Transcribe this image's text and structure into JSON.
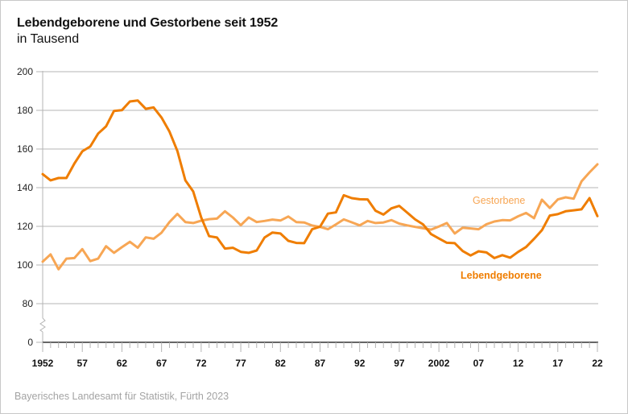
{
  "header": {
    "title": "Lebendgeborene und Gestorbene seit 1952",
    "subtitle": "in Tausend"
  },
  "footer": {
    "source": "Bayerisches Landesamt für Statistik, Fürth 2023"
  },
  "chart_data": {
    "type": "line",
    "title": "Lebendgeborene und Gestorbene seit 1952",
    "subtitle": "in Tausend",
    "xlabel": "",
    "ylabel": "",
    "ylim": [
      0,
      200
    ],
    "axis_break": [
      0,
      80
    ],
    "yticks": [
      0,
      80,
      100,
      120,
      140,
      160,
      180,
      200
    ],
    "ytick_labels": [
      "0",
      "80",
      "100",
      "120",
      "140",
      "160",
      "180",
      "200"
    ],
    "xlim": [
      1952,
      2022
    ],
    "xticks": [
      1952,
      1957,
      1962,
      1967,
      1972,
      1977,
      1982,
      1987,
      1992,
      1997,
      2002,
      2007,
      2012,
      2017,
      2022
    ],
    "xtick_labels": [
      "1952",
      "57",
      "62",
      "67",
      "72",
      "77",
      "82",
      "87",
      "92",
      "97",
      "2002",
      "07",
      "12",
      "17",
      "22"
    ],
    "grid": true,
    "x": [
      1952,
      1953,
      1954,
      1955,
      1956,
      1957,
      1958,
      1959,
      1960,
      1961,
      1962,
      1963,
      1964,
      1965,
      1966,
      1967,
      1968,
      1969,
      1970,
      1971,
      1972,
      1973,
      1974,
      1975,
      1976,
      1977,
      1978,
      1979,
      1980,
      1981,
      1982,
      1983,
      1984,
      1985,
      1986,
      1987,
      1988,
      1989,
      1990,
      1991,
      1992,
      1993,
      1994,
      1995,
      1996,
      1997,
      1998,
      1999,
      2000,
      2001,
      2002,
      2003,
      2004,
      2005,
      2006,
      2007,
      2008,
      2009,
      2010,
      2011,
      2012,
      2013,
      2014,
      2015,
      2016,
      2017,
      2018,
      2019,
      2020,
      2021,
      2022
    ],
    "series": [
      {
        "name": "Lebendgeborene",
        "color": "#ef7d00",
        "label_position": "below-right",
        "values": [
          147.0,
          143.8,
          145.0,
          145.0,
          152.5,
          158.8,
          161.3,
          168.0,
          171.7,
          179.7,
          180.1,
          184.6,
          185.1,
          180.8,
          181.5,
          176.3,
          169.0,
          159.0,
          143.8,
          138.0,
          124.6,
          114.9,
          114.2,
          108.5,
          108.9,
          106.8,
          106.3,
          107.5,
          114.2,
          116.8,
          116.3,
          112.5,
          111.4,
          111.3,
          118.5,
          119.8,
          126.6,
          127.2,
          136.1,
          134.6,
          134.0,
          133.9,
          128.1,
          126.1,
          129.3,
          130.6,
          127.1,
          123.6,
          121.0,
          116.0,
          113.7,
          111.5,
          111.3,
          107.2,
          104.9,
          107.1,
          106.5,
          103.6,
          105.1,
          103.8,
          106.8,
          109.3,
          113.5,
          118.0,
          125.6,
          126.3,
          127.8,
          128.3,
          128.8,
          134.6,
          125.3
        ]
      },
      {
        "name": "Gestorbene",
        "color": "#f7a654",
        "label_position": "above-right",
        "values": [
          101.7,
          105.5,
          97.8,
          103.3,
          103.6,
          108.2,
          102.0,
          103.3,
          109.7,
          106.3,
          109.2,
          112.0,
          108.9,
          114.3,
          113.6,
          116.7,
          122.2,
          126.4,
          122.2,
          121.7,
          122.9,
          123.7,
          124.0,
          127.8,
          124.6,
          120.6,
          124.6,
          122.2,
          122.8,
          123.5,
          123.0,
          125.1,
          122.2,
          122.0,
          120.4,
          119.7,
          118.5,
          121.0,
          123.6,
          122.1,
          120.5,
          122.8,
          121.7,
          122.0,
          123.2,
          121.4,
          120.5,
          119.7,
          119.0,
          118.3,
          119.9,
          121.7,
          116.3,
          119.3,
          118.9,
          118.5,
          121.1,
          122.5,
          123.2,
          123.1,
          125.2,
          126.9,
          124.2,
          133.8,
          129.5,
          133.9,
          135.0,
          134.3,
          143.3,
          147.9,
          152.1
        ]
      }
    ],
    "legend": {
      "type": "inline-labels",
      "entries": [
        "Gestorbene",
        "Lebendgeborene"
      ]
    }
  }
}
